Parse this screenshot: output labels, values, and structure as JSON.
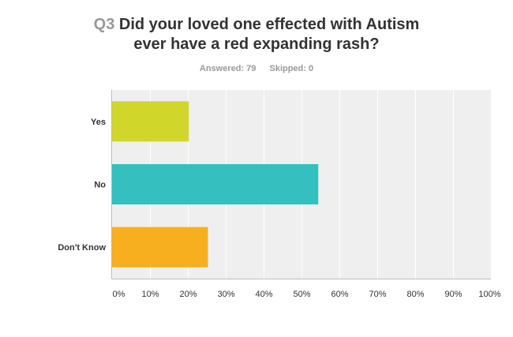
{
  "question": {
    "number": "Q3",
    "title_lines": [
      "Did your loved one effected with Autism",
      "ever have a red expanding rash?"
    ]
  },
  "stats": {
    "answered": "Answered: 79",
    "skipped": "Skipped: 0"
  },
  "chart_data": {
    "type": "bar",
    "orientation": "horizontal",
    "categories": [
      "Yes",
      "No",
      "Don't Know"
    ],
    "values": [
      20.25,
      54.43,
      25.32
    ],
    "colors": [
      "#d0d72a",
      "#35bfbf",
      "#f8af1f"
    ],
    "xlim": [
      0,
      100
    ],
    "x_ticks": [
      "0%",
      "10%",
      "20%",
      "30%",
      "40%",
      "50%",
      "60%",
      "70%",
      "80%",
      "90%",
      "100%"
    ],
    "grid": true,
    "plot_background": "#efefef"
  }
}
